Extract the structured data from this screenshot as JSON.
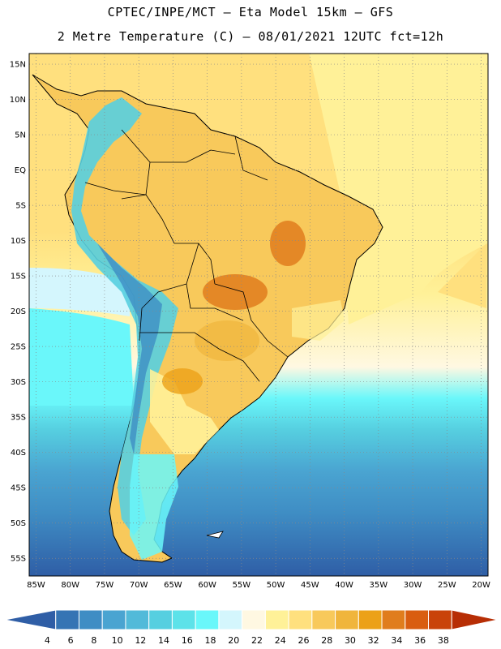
{
  "header": {
    "title_line1": "CPTEC/INPE/MCT –  Eta Model 15km – GFS",
    "title_line2": "2 Metre Temperature (C) – 08/01/2021 12UTC fct=12h"
  },
  "map": {
    "lat_labels": [
      "15N",
      "10N",
      "5N",
      "EQ",
      "5S",
      "10S",
      "15S",
      "20S",
      "25S",
      "30S",
      "35S",
      "40S",
      "45S",
      "50S",
      "55S"
    ],
    "lon_labels": [
      "85W",
      "80W",
      "75W",
      "70W",
      "65W",
      "60W",
      "55W",
      "50W",
      "45W",
      "40W",
      "35W",
      "30W",
      "25W",
      "20W"
    ],
    "lon_range": [
      -86,
      -19
    ],
    "lat_range": [
      -57.5,
      16.5
    ]
  },
  "colorbar": {
    "labels": [
      "4",
      "6",
      "8",
      "10",
      "12",
      "14",
      "16",
      "18",
      "20",
      "22",
      "24",
      "26",
      "28",
      "30",
      "32",
      "34",
      "36",
      "38"
    ],
    "colors": [
      "#2f5ea6",
      "#3574b4",
      "#3f8dc4",
      "#4aa4d1",
      "#52bad9",
      "#56cfe0",
      "#5de2e9",
      "#6af7fa",
      "#d4f6fd",
      "#fff8e2",
      "#fff198",
      "#ffe07e",
      "#f8c95b",
      "#f0b53c",
      "#eca118",
      "#e07d1d",
      "#d95d10",
      "#c9430a",
      "#b72e05"
    ]
  }
}
